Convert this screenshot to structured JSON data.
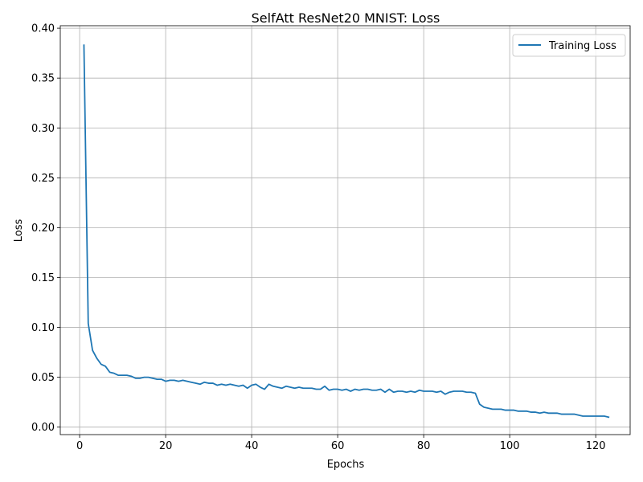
{
  "chart_data": {
    "type": "line",
    "title": "SelfAtt ResNet20 MNIST: Loss",
    "xlabel": "Epochs",
    "ylabel": "Loss",
    "xlim": [
      -4.5,
      128
    ],
    "ylim": [
      -0.0075,
      0.4025
    ],
    "xticks": [
      0,
      20,
      40,
      60,
      80,
      100,
      120
    ],
    "yticks": [
      0.0,
      0.05,
      0.1,
      0.15,
      0.2,
      0.25,
      0.3,
      0.35,
      0.4
    ],
    "xtick_labels": [
      "0",
      "20",
      "40",
      "60",
      "80",
      "100",
      "120"
    ],
    "ytick_labels": [
      "0.00",
      "0.05",
      "0.10",
      "0.15",
      "0.20",
      "0.25",
      "0.30",
      "0.35",
      "0.40"
    ],
    "grid": true,
    "legend_position": "upper-right",
    "series": [
      {
        "name": "Training Loss",
        "color": "#1f77b4",
        "x_start": 1,
        "x_step": 1,
        "values": [
          0.383,
          0.104,
          0.077,
          0.069,
          0.063,
          0.061,
          0.055,
          0.054,
          0.052,
          0.052,
          0.052,
          0.051,
          0.049,
          0.049,
          0.05,
          0.05,
          0.049,
          0.048,
          0.048,
          0.046,
          0.047,
          0.047,
          0.046,
          0.047,
          0.046,
          0.045,
          0.044,
          0.043,
          0.045,
          0.044,
          0.044,
          0.042,
          0.043,
          0.042,
          0.043,
          0.042,
          0.041,
          0.042,
          0.039,
          0.042,
          0.043,
          0.04,
          0.038,
          0.043,
          0.041,
          0.04,
          0.039,
          0.041,
          0.04,
          0.039,
          0.04,
          0.039,
          0.039,
          0.039,
          0.038,
          0.038,
          0.041,
          0.037,
          0.038,
          0.038,
          0.037,
          0.038,
          0.036,
          0.038,
          0.037,
          0.038,
          0.038,
          0.037,
          0.037,
          0.038,
          0.035,
          0.038,
          0.035,
          0.036,
          0.036,
          0.035,
          0.036,
          0.035,
          0.037,
          0.036,
          0.036,
          0.036,
          0.035,
          0.036,
          0.033,
          0.035,
          0.036,
          0.036,
          0.036,
          0.035,
          0.035,
          0.034,
          0.023,
          0.02,
          0.019,
          0.018,
          0.018,
          0.018,
          0.017,
          0.017,
          0.017,
          0.016,
          0.016,
          0.016,
          0.015,
          0.015,
          0.014,
          0.015,
          0.014,
          0.014,
          0.014,
          0.013,
          0.013,
          0.013,
          0.013,
          0.012,
          0.011,
          0.011,
          0.011,
          0.011,
          0.011,
          0.011,
          0.01
        ]
      }
    ]
  }
}
